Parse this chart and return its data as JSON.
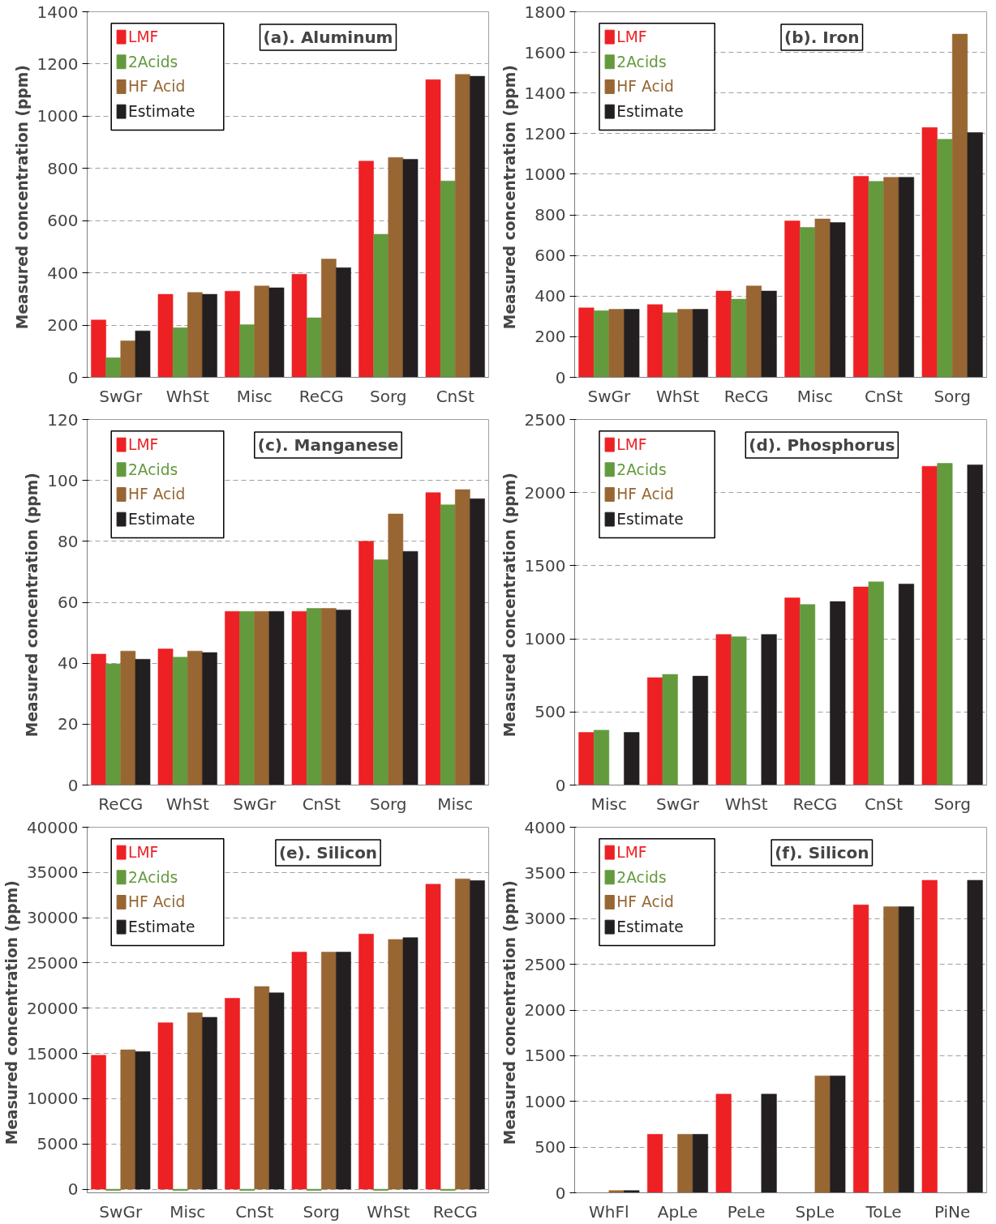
{
  "chart_data": [
    {
      "type": "bar",
      "title": "(a). Aluminum",
      "ylabel": "Measured concentration  (ppm)",
      "categories": [
        "SwGr",
        "WhSt",
        "Misc",
        "ReCG",
        "Sorg",
        "CnSt"
      ],
      "ylim": [
        0,
        1400
      ],
      "yticks": [
        0,
        200,
        400,
        600,
        800,
        1000,
        1200,
        1400
      ],
      "grid": "y",
      "legend": "top left",
      "series": [
        {
          "name": "LMF",
          "color": "#ed2024",
          "values": [
            220,
            318,
            330,
            395,
            828,
            1140
          ]
        },
        {
          "name": "2Acids",
          "color": "#649a3e",
          "values": [
            75,
            190,
            202,
            228,
            548,
            752
          ]
        },
        {
          "name": "HF Acid",
          "color": "#986632",
          "values": [
            140,
            325,
            350,
            453,
            842,
            1160
          ]
        },
        {
          "name": "Estimate",
          "color": "#231f20",
          "values": [
            178,
            318,
            343,
            420,
            835,
            1153
          ]
        }
      ]
    },
    {
      "type": "bar",
      "title": "(b). Iron",
      "ylabel": "Measured concentration  (ppm)",
      "categories": [
        "SwGr",
        "WhSt",
        "ReCG",
        "Misc",
        "CnSt",
        "Sorg"
      ],
      "ylim": [
        0,
        1800
      ],
      "yticks": [
        0,
        200,
        400,
        600,
        800,
        1000,
        1200,
        1400,
        1600,
        1800
      ],
      "grid": "y",
      "legend": "top left",
      "series": [
        {
          "name": "LMF",
          "color": "#ed2024",
          "values": [
            342,
            358,
            425,
            770,
            990,
            1230
          ]
        },
        {
          "name": "2Acids",
          "color": "#649a3e",
          "values": [
            328,
            318,
            385,
            738,
            965,
            1172
          ]
        },
        {
          "name": "HF Acid",
          "color": "#986632",
          "values": [
            335,
            335,
            450,
            780,
            985,
            1690
          ]
        },
        {
          "name": "Estimate",
          "color": "#231f20",
          "values": [
            335,
            335,
            425,
            762,
            985,
            1205
          ]
        }
      ]
    },
    {
      "type": "bar",
      "title": "(c). Manganese",
      "ylabel": "Measured concentration  (ppm)",
      "categories": [
        "ReCG",
        "WhSt",
        "SwGr",
        "CnSt",
        "Sorg",
        "Misc"
      ],
      "ylim": [
        0,
        120
      ],
      "yticks": [
        0,
        20,
        40,
        60,
        80,
        100,
        120
      ],
      "grid": "y",
      "legend": "top left",
      "series": [
        {
          "name": "LMF",
          "color": "#ed2024",
          "values": [
            43,
            44.7,
            57,
            57,
            80,
            96
          ]
        },
        {
          "name": "2Acids",
          "color": "#649a3e",
          "values": [
            39.8,
            42,
            57,
            58,
            74,
            92
          ]
        },
        {
          "name": "HF Acid",
          "color": "#986632",
          "values": [
            44,
            44,
            57,
            58,
            89,
            97
          ]
        },
        {
          "name": "Estimate",
          "color": "#231f20",
          "values": [
            41.3,
            43.5,
            57,
            57.5,
            76.7,
            94
          ]
        }
      ]
    },
    {
      "type": "bar",
      "title": "(d). Phosphorus",
      "ylabel": "Measured concentration  (ppm)",
      "categories": [
        "Misc",
        "SwGr",
        "WhSt",
        "ReCG",
        "CnSt",
        "Sorg"
      ],
      "ylim": [
        0,
        2500
      ],
      "yticks": [
        0,
        500,
        1000,
        1500,
        2000,
        2500
      ],
      "grid": "y",
      "legend": "top left",
      "series": [
        {
          "name": "LMF",
          "color": "#ed2024",
          "values": [
            360,
            735,
            1030,
            1280,
            1355,
            2180
          ]
        },
        {
          "name": "2Acids",
          "color": "#649a3e",
          "values": [
            375,
            757,
            1015,
            1235,
            1390,
            2200
          ]
        },
        {
          "name": "HF Acid",
          "color": "#986632",
          "values": [
            null,
            null,
            null,
            null,
            null,
            null
          ]
        },
        {
          "name": "Estimate",
          "color": "#231f20",
          "values": [
            360,
            745,
            1030,
            1255,
            1375,
            2190
          ]
        }
      ]
    },
    {
      "type": "bar",
      "title": "(e). Silicon",
      "ylabel": "Measured concentration  (ppm)",
      "categories": [
        "SwGr",
        "Misc",
        "CnSt",
        "Sorg",
        "WhSt",
        "ReCG"
      ],
      "ylim": [
        -400,
        40000
      ],
      "yticks": [
        0,
        5000,
        10000,
        15000,
        20000,
        25000,
        30000,
        35000,
        40000
      ],
      "grid": "y",
      "legend": "top left",
      "series": [
        {
          "name": "LMF",
          "color": "#ed2024",
          "values": [
            14800,
            18400,
            21100,
            26200,
            28200,
            33700
          ]
        },
        {
          "name": "2Acids",
          "color": "#649a3e",
          "values": [
            -150,
            -150,
            -150,
            -150,
            -150,
            -150
          ]
        },
        {
          "name": "HF Acid",
          "color": "#986632",
          "values": [
            15400,
            19500,
            22400,
            26200,
            27600,
            34300
          ]
        },
        {
          "name": "Estimate",
          "color": "#231f20",
          "values": [
            15200,
            19000,
            21700,
            26200,
            27800,
            34100
          ]
        }
      ]
    },
    {
      "type": "bar",
      "title": "(f). Silicon",
      "ylabel": "Measured concentration  (ppm)",
      "categories": [
        "WhFl",
        "ApLe",
        "PeLe",
        "SpLe",
        "ToLe",
        "PiNe"
      ],
      "ylim": [
        0,
        4000
      ],
      "yticks": [
        0,
        500,
        1000,
        1500,
        2000,
        2500,
        3000,
        3500,
        4000
      ],
      "grid": "y",
      "legend": "top left",
      "series": [
        {
          "name": "LMF",
          "color": "#ed2024",
          "values": [
            null,
            640,
            1080,
            null,
            3150,
            3420
          ]
        },
        {
          "name": "2Acids",
          "color": "#649a3e",
          "values": [
            null,
            null,
            null,
            null,
            null,
            null
          ]
        },
        {
          "name": "HF Acid",
          "color": "#986632",
          "values": [
            25,
            640,
            null,
            1280,
            3130,
            null
          ]
        },
        {
          "name": "Estimate",
          "color": "#231f20",
          "values": [
            25,
            640,
            1080,
            1280,
            3130,
            3420
          ]
        }
      ]
    }
  ]
}
